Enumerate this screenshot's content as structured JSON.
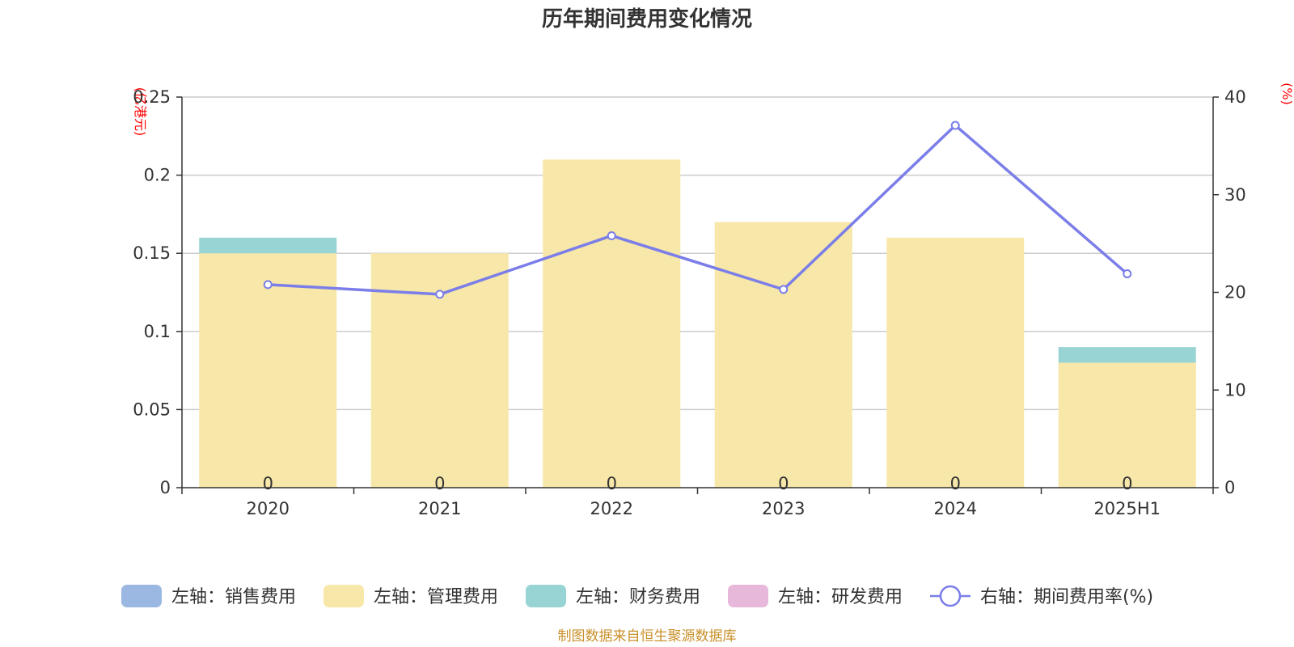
{
  "chart_data": {
    "type": "bar",
    "title": "历年期间费用变化情况",
    "categories": [
      "2020",
      "2021",
      "2022",
      "2023",
      "2024",
      "2025H1"
    ],
    "left_axis": {
      "unit": "(亿港元)",
      "ylim": [
        0,
        0.25
      ],
      "ticks": [
        "0",
        "0.05",
        "0.1",
        "0.15",
        "0.2",
        "0.25"
      ],
      "tick_values": [
        0,
        0.05,
        0.1,
        0.15,
        0.2,
        0.25
      ]
    },
    "right_axis": {
      "unit": "(%)",
      "ylim": [
        0,
        40
      ],
      "ticks": [
        "0",
        "10",
        "20",
        "30",
        "40"
      ],
      "tick_values": [
        0,
        10,
        20,
        30,
        40
      ]
    },
    "series": [
      {
        "name": "左轴：销售费用",
        "type": "bar",
        "axis": "left",
        "color": "#9bb8e3",
        "values": [
          0,
          0,
          0,
          0,
          0,
          0
        ]
      },
      {
        "name": "左轴：管理费用",
        "type": "bar",
        "axis": "left",
        "color": "#f7e7a8",
        "values": [
          0.15,
          0.15,
          0.21,
          0.17,
          0.16,
          0.08
        ]
      },
      {
        "name": "左轴：财务费用",
        "type": "bar",
        "axis": "left",
        "color": "#99d4d4",
        "values": [
          0.01,
          0,
          0,
          0,
          0,
          0.01
        ]
      },
      {
        "name": "左轴：研发费用",
        "type": "bar",
        "axis": "left",
        "color": "#e7b8da",
        "values": [
          0,
          0,
          0,
          0,
          0,
          0
        ]
      },
      {
        "name": "右轴：期间费用率(%)",
        "type": "line",
        "axis": "right",
        "color": "#7b7ee8",
        "values": [
          20.8,
          19.8,
          25.8,
          20.3,
          37.1,
          21.9
        ]
      }
    ],
    "zero_labels": [
      "0",
      "0",
      "0",
      "0",
      "0",
      "0"
    ],
    "grid": true,
    "legend_position": "bottom"
  },
  "source": "制图数据来自恒生聚源数据库"
}
